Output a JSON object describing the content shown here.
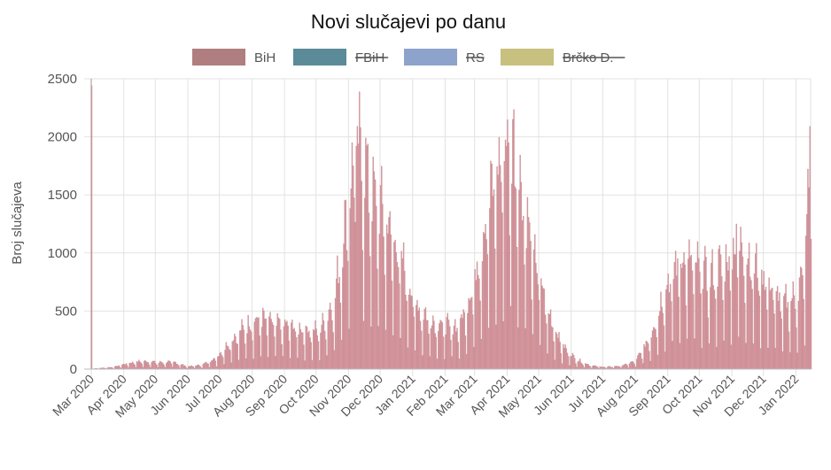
{
  "chart_data": {
    "type": "bar",
    "title": "Novi slučajevi po danu",
    "ylabel": "Broj slučajeva",
    "xlabel": "",
    "ylim": [
      0,
      2500
    ],
    "yticks": [
      0,
      500,
      1000,
      1500,
      2000,
      2500
    ],
    "grid": true,
    "legend_position": "top",
    "x_start": "2020-03-01",
    "x_end": "2022-01-15",
    "categories": [
      "Mar 2020",
      "Apr 2020",
      "May 2020",
      "Jun 2020",
      "Jul 2020",
      "Aug 2020",
      "Sep 2020",
      "Oct 2020",
      "Nov 2020",
      "Dec 2020",
      "Jan 2021",
      "Feb 2021",
      "Mar 2021",
      "Apr 2021",
      "May 2021",
      "Jun 2021",
      "Jul 2021",
      "Aug 2021",
      "Sep 2021",
      "Oct 2021",
      "Nov 2021",
      "Dec 2021",
      "Jan 2022"
    ],
    "category_dates": [
      "2020-03-01",
      "2020-04-01",
      "2020-05-01",
      "2020-06-01",
      "2020-07-01",
      "2020-08-01",
      "2020-09-01",
      "2020-10-01",
      "2020-11-01",
      "2020-12-01",
      "2021-01-01",
      "2021-02-01",
      "2021-03-01",
      "2021-04-01",
      "2021-05-01",
      "2021-06-01",
      "2021-07-01",
      "2021-08-01",
      "2021-09-01",
      "2021-10-01",
      "2021-11-01",
      "2021-12-01",
      "2022-01-01"
    ],
    "series": [
      {
        "name": "BiH",
        "color": "#b07e7e",
        "bar_color": "#e49aa6",
        "hidden": false,
        "weekly_keyframes": [
          [
            "2020-03-01",
            2
          ],
          [
            "2020-03-22",
            15
          ],
          [
            "2020-04-05",
            45
          ],
          [
            "2020-04-19",
            60
          ],
          [
            "2020-05-03",
            50
          ],
          [
            "2020-05-17",
            55
          ],
          [
            "2020-05-31",
            20
          ],
          [
            "2020-06-14",
            30
          ],
          [
            "2020-06-28",
            90
          ],
          [
            "2020-07-12",
            220
          ],
          [
            "2020-07-26",
            330
          ],
          [
            "2020-08-09",
            390
          ],
          [
            "2020-08-23",
            340
          ],
          [
            "2020-09-06",
            330
          ],
          [
            "2020-09-20",
            300
          ],
          [
            "2020-10-04",
            290
          ],
          [
            "2020-10-18",
            520
          ],
          [
            "2020-11-01",
            1300
          ],
          [
            "2020-11-08",
            1700
          ],
          [
            "2020-11-15",
            1600
          ],
          [
            "2020-11-22",
            1350
          ],
          [
            "2020-12-06",
            1150
          ],
          [
            "2020-12-20",
            850
          ],
          [
            "2021-01-03",
            500
          ],
          [
            "2021-01-17",
            380
          ],
          [
            "2021-01-31",
            330
          ],
          [
            "2021-02-14",
            330
          ],
          [
            "2021-02-28",
            650
          ],
          [
            "2021-03-14",
            1250
          ],
          [
            "2021-03-28",
            1650
          ],
          [
            "2021-04-04",
            1750
          ],
          [
            "2021-04-11",
            1500
          ],
          [
            "2021-04-25",
            900
          ],
          [
            "2021-05-09",
            450
          ],
          [
            "2021-05-23",
            180
          ],
          [
            "2021-06-06",
            70
          ],
          [
            "2021-06-20",
            25
          ],
          [
            "2021-07-04",
            15
          ],
          [
            "2021-07-18",
            25
          ],
          [
            "2021-08-01",
            60
          ],
          [
            "2021-08-15",
            250
          ],
          [
            "2021-08-29",
            600
          ],
          [
            "2021-09-12",
            850
          ],
          [
            "2021-09-26",
            800
          ],
          [
            "2021-10-10",
            700
          ],
          [
            "2021-10-24",
            800
          ],
          [
            "2021-11-07",
            950
          ],
          [
            "2021-11-21",
            800
          ],
          [
            "2021-12-05",
            650
          ],
          [
            "2021-12-19",
            500
          ],
          [
            "2022-01-02",
            550
          ],
          [
            "2022-01-09",
            800
          ],
          [
            "2022-01-15",
            1700
          ]
        ],
        "notable_peaks": [
          [
            "2020-03-01",
            2440
          ],
          [
            "2020-11-04",
            1950
          ],
          [
            "2020-11-08",
            1920
          ],
          [
            "2021-04-06",
            2150
          ],
          [
            "2021-04-02",
            1950
          ],
          [
            "2021-11-05",
            1250
          ],
          [
            "2022-01-14",
            2090
          ]
        ]
      },
      {
        "name": "FBiH",
        "color": "#5b8a99",
        "hidden": true
      },
      {
        "name": "RS",
        "color": "#8ea3cc",
        "hidden": true
      },
      {
        "name": "Brčko D.",
        "color": "#c8c07e",
        "hidden": true
      }
    ]
  }
}
